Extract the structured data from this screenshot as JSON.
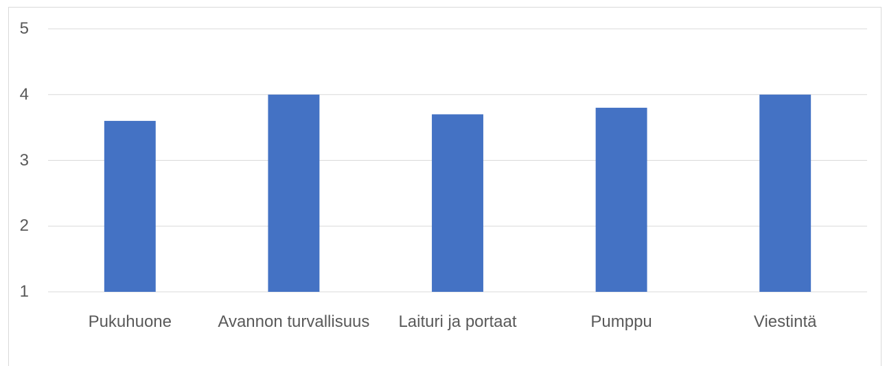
{
  "chart_data": {
    "type": "bar",
    "categories": [
      "Pukuhuone",
      "Avannon turvallisuus",
      "Laituri ja portaat",
      "Pumppu",
      "Viestintä"
    ],
    "values": [
      3.6,
      4,
      3.7,
      3.8,
      4
    ],
    "color": "#4472c4",
    "ylim": [
      1,
      5
    ],
    "yticks": [
      1,
      2,
      3,
      4,
      5
    ],
    "grid": true
  }
}
